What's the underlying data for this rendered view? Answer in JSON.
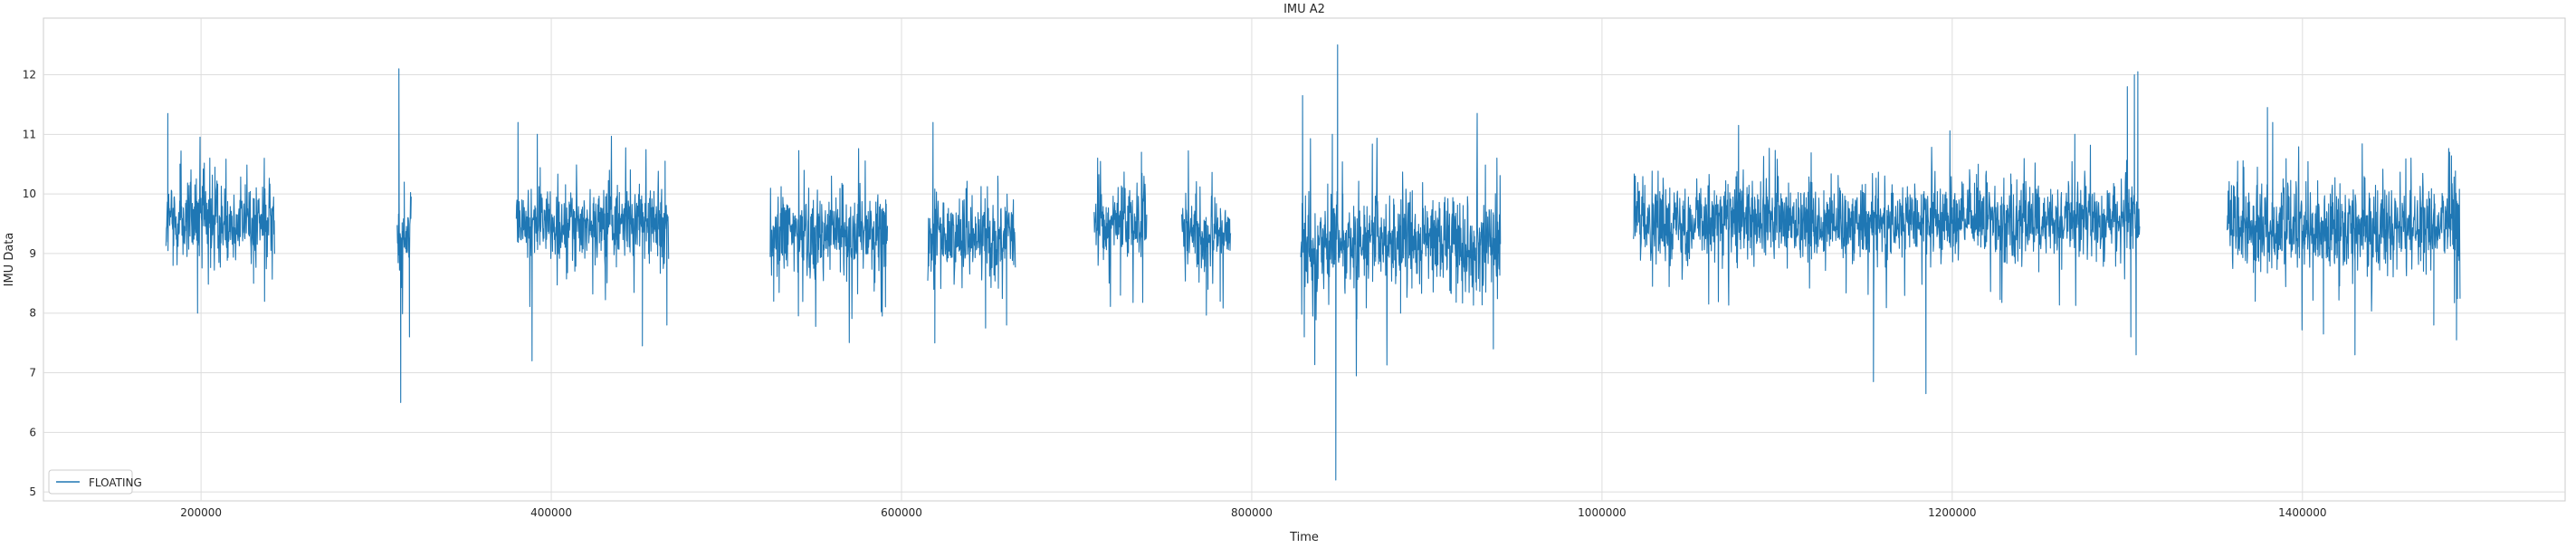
{
  "chart_data": {
    "type": "line",
    "title": "IMU A2",
    "xlabel": "Time",
    "ylabel": "IMU Data",
    "xlim": [
      110000,
      1550000
    ],
    "ylim": [
      4.85,
      12.95
    ],
    "xticks": [
      200000,
      400000,
      600000,
      800000,
      1000000,
      1200000,
      1400000
    ],
    "xtick_labels": [
      "200000",
      "400000",
      "600000",
      "800000",
      "1000000",
      "1200000",
      "1400000"
    ],
    "yticks": [
      5,
      6,
      7,
      8,
      9,
      10,
      11,
      12
    ],
    "ytick_labels": [
      "5",
      "6",
      "7",
      "8",
      "9",
      "10",
      "11",
      "12"
    ],
    "grid": true,
    "legend": {
      "position": "lower-left",
      "entries": [
        "FLOATING"
      ]
    },
    "series": [
      {
        "name": "FLOATING",
        "color": "#1f77b4",
        "segments": [
          {
            "x_start": 180000,
            "x_end": 242000,
            "mean": 9.55,
            "spread": 0.45,
            "extremes": [
              [
                181000,
                11.35
              ],
              [
                184000,
                8.8
              ],
              [
                188000,
                10.5
              ],
              [
                198000,
                8.0
              ],
              [
                205000,
                10.6
              ],
              [
                230000,
                8.5
              ]
            ]
          },
          {
            "x_start": 312000,
            "x_end": 320000,
            "mean": 9.4,
            "spread": 0.5,
            "extremes": [
              [
                313000,
                12.1
              ],
              [
                314000,
                6.5
              ],
              [
                316000,
                10.2
              ],
              [
                319000,
                7.6
              ]
            ]
          },
          {
            "x_start": 380000,
            "x_end": 467000,
            "mean": 9.5,
            "spread": 0.45,
            "extremes": [
              [
                381000,
                11.2
              ],
              [
                389000,
                7.2
              ],
              [
                392000,
                11.0
              ],
              [
                452000,
                7.45
              ],
              [
                466000,
                7.8
              ],
              [
                465000,
                10.55
              ]
            ]
          },
          {
            "x_start": 525000,
            "x_end": 592000,
            "mean": 9.35,
            "spread": 0.5,
            "extremes": [
              [
                527000,
                8.2
              ],
              [
                560000,
                10.3
              ],
              [
                589000,
                7.95
              ],
              [
                591000,
                9.9
              ]
            ]
          },
          {
            "x_start": 615000,
            "x_end": 665000,
            "mean": 9.3,
            "spread": 0.45,
            "extremes": [
              [
                618000,
                11.2
              ],
              [
                619000,
                7.5
              ],
              [
                648000,
                7.75
              ],
              [
                660000,
                7.8
              ],
              [
                655000,
                10.3
              ]
            ]
          },
          {
            "x_start": 710000,
            "x_end": 740000,
            "mean": 9.5,
            "spread": 0.45,
            "extremes": [
              [
                737000,
                10.7
              ],
              [
                725000,
                8.3
              ],
              [
                712000,
                10.6
              ]
            ]
          },
          {
            "x_start": 760000,
            "x_end": 788000,
            "mean": 9.3,
            "spread": 0.4,
            "extremes": [
              [
                768000,
                10.0
              ],
              [
                782000,
                8.2
              ],
              [
                775000,
                8.4
              ]
            ]
          },
          {
            "x_start": 828000,
            "x_end": 942000,
            "mean": 9.2,
            "spread": 0.55,
            "extremes": [
              [
                829000,
                11.65
              ],
              [
                830000,
                7.6
              ],
              [
                848000,
                5.2
              ],
              [
                849000,
                12.5
              ],
              [
                846000,
                11.0
              ],
              [
                852000,
                10.0
              ],
              [
                860000,
                7.9
              ],
              [
                885000,
                8.0
              ],
              [
                938000,
                7.4
              ],
              [
                940000,
                10.6
              ]
            ]
          },
          {
            "x_start": 1018000,
            "x_end": 1307000,
            "mean": 9.55,
            "spread": 0.45,
            "extremes": [
              [
                1019000,
                10.3
              ],
              [
                1078000,
                11.15
              ],
              [
                1155000,
                6.85
              ],
              [
                1185000,
                6.65
              ],
              [
                1300000,
                11.8
              ],
              [
                1302000,
                7.6
              ],
              [
                1304000,
                12.0
              ],
              [
                1305000,
                7.3
              ],
              [
                1306000,
                12.05
              ],
              [
                1270000,
                11.0
              ]
            ]
          },
          {
            "x_start": 1357000,
            "x_end": 1490000,
            "mean": 9.45,
            "spread": 0.5,
            "extremes": [
              [
                1363000,
                10.55
              ],
              [
                1380000,
                11.45
              ],
              [
                1383000,
                11.2
              ],
              [
                1373000,
                8.2
              ],
              [
                1412000,
                7.65
              ],
              [
                1430000,
                7.3
              ],
              [
                1462000,
                10.6
              ],
              [
                1475000,
                7.8
              ],
              [
                1484000,
                10.7
              ],
              [
                1488000,
                7.55
              ]
            ]
          }
        ]
      }
    ]
  }
}
